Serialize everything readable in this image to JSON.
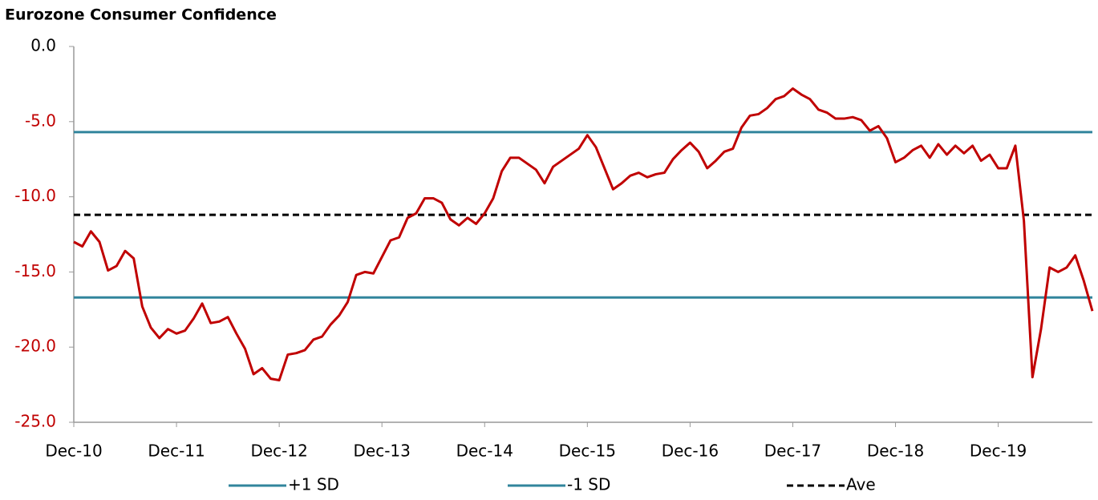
{
  "chart_data": {
    "type": "line",
    "title": "Eurozone Consumer Confidence",
    "categories": [
      "Dec-10",
      null,
      null,
      null,
      null,
      null,
      null,
      null,
      null,
      null,
      null,
      null,
      "Dec-11",
      null,
      null,
      null,
      null,
      null,
      null,
      null,
      null,
      null,
      null,
      null,
      "Dec-12",
      null,
      null,
      null,
      null,
      null,
      null,
      null,
      null,
      null,
      null,
      null,
      "Dec-13",
      null,
      null,
      null,
      null,
      null,
      null,
      null,
      null,
      null,
      null,
      null,
      "Dec-14",
      null,
      null,
      null,
      null,
      null,
      null,
      null,
      null,
      null,
      null,
      null,
      "Dec-15",
      null,
      null,
      null,
      null,
      null,
      null,
      null,
      null,
      null,
      null,
      null,
      "Dec-16",
      null,
      null,
      null,
      null,
      null,
      null,
      null,
      null,
      null,
      null,
      null,
      "Dec-17",
      null,
      null,
      null,
      null,
      null,
      null,
      null,
      null,
      null,
      null,
      null,
      "Dec-18",
      null,
      null,
      null,
      null,
      null,
      null,
      null,
      null,
      null,
      null,
      null,
      "Dec-19",
      null,
      null,
      null,
      null,
      null,
      null,
      null,
      null,
      null,
      null,
      null
    ],
    "series": [
      {
        "color": "#c00000",
        "values": [
          -13.0,
          -13.3,
          -12.3,
          -13.0,
          -14.9,
          -14.6,
          -13.6,
          -14.1,
          -17.3,
          -18.7,
          -19.4,
          -18.8,
          -19.1,
          -18.9,
          -18.1,
          -17.1,
          -18.4,
          -18.3,
          -18.0,
          -19.1,
          -20.1,
          -21.8,
          -21.4,
          -22.1,
          -22.2,
          -20.5,
          -20.4,
          -20.2,
          -19.5,
          -19.3,
          -18.5,
          -17.9,
          -17.0,
          -15.2,
          -15.0,
          -15.1,
          -14.0,
          -12.9,
          -12.7,
          -11.4,
          -11.1,
          -10.1,
          -10.1,
          -10.4,
          -11.5,
          -11.9,
          -11.4,
          -11.8,
          -11.1,
          -10.1,
          -8.3,
          -7.4,
          -7.4,
          -7.8,
          -8.2,
          -9.1,
          -8.0,
          -7.6,
          -7.2,
          -6.8,
          -5.9,
          -6.7,
          -8.1,
          -9.5,
          -9.1,
          -8.6,
          -8.4,
          -8.7,
          -8.5,
          -8.4,
          -7.5,
          -6.9,
          -6.4,
          -7.0,
          -8.1,
          -7.6,
          -7.0,
          -6.8,
          -5.4,
          -4.6,
          -4.5,
          -4.1,
          -3.5,
          -3.3,
          -2.8,
          -3.2,
          -3.5,
          -4.2,
          -4.4,
          -4.8,
          -4.8,
          -4.7,
          -4.9,
          -5.6,
          -5.3,
          -6.1,
          -7.7,
          -7.4,
          -6.9,
          -6.6,
          -7.4,
          -6.5,
          -7.2,
          -6.6,
          -7.1,
          -6.6,
          -7.6,
          -7.2,
          -8.1,
          -8.1,
          -6.6,
          -11.6,
          -22.0,
          -18.8,
          -14.7,
          -15.0,
          -14.7,
          -13.9,
          -15.6,
          -17.6
        ]
      }
    ],
    "reference_lines": [
      {
        "name": "+1 SD",
        "value": -5.7,
        "color": "#31859c",
        "dash": false
      },
      {
        "name": "-1 SD",
        "value": -16.7,
        "color": "#31859c",
        "dash": false
      },
      {
        "name": "Ave",
        "value": -11.2,
        "color": "#000000",
        "dash": true
      }
    ],
    "ylim": [
      -25,
      0
    ],
    "yticks": [
      {
        "value": -25,
        "label": "-25.0"
      },
      {
        "value": -20,
        "label": "-20.0"
      },
      {
        "value": -15,
        "label": "-15.0"
      },
      {
        "value": -10,
        "label": "-10.0"
      },
      {
        "value": -5,
        "label": "-5.0"
      },
      {
        "value": 0,
        "label": "0.0"
      }
    ],
    "negative_label_color": "#c00000",
    "legend": "bottom"
  }
}
